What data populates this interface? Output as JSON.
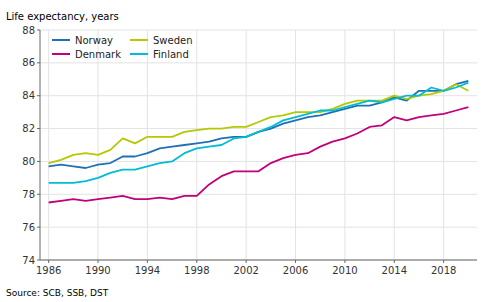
{
  "chart_data": {
    "type": "line",
    "ylabel": "Life expectancy, years",
    "source": "Source: SCB, SSB, DST",
    "x": [
      1986,
      1987,
      1988,
      1989,
      1990,
      1991,
      1992,
      1993,
      1994,
      1995,
      1996,
      1997,
      1998,
      1999,
      2000,
      2001,
      2002,
      2003,
      2004,
      2005,
      2006,
      2007,
      2008,
      2009,
      2010,
      2011,
      2012,
      2013,
      2014,
      2015,
      2016,
      2017,
      2018,
      2019,
      2020
    ],
    "series": [
      {
        "name": "Norway",
        "color": "#2070b4",
        "values": [
          79.7,
          79.8,
          79.7,
          79.6,
          79.8,
          79.9,
          80.3,
          80.3,
          80.5,
          80.8,
          80.9,
          81.0,
          81.1,
          81.2,
          81.4,
          81.5,
          81.5,
          81.8,
          82.0,
          82.3,
          82.5,
          82.7,
          82.8,
          83.0,
          83.2,
          83.4,
          83.4,
          83.6,
          83.9,
          83.7,
          84.3,
          84.3,
          84.3,
          84.7,
          84.9
        ]
      },
      {
        "name": "Sweden",
        "color": "#b5c900",
        "values": [
          79.9,
          80.1,
          80.4,
          80.5,
          80.4,
          80.7,
          81.4,
          81.1,
          81.5,
          81.5,
          81.5,
          81.8,
          81.9,
          82.0,
          82.0,
          82.1,
          82.1,
          82.4,
          82.7,
          82.8,
          83.0,
          83.0,
          83.0,
          83.2,
          83.5,
          83.7,
          83.7,
          83.7,
          84.0,
          83.8,
          84.0,
          84.1,
          84.3,
          84.7,
          84.3
        ]
      },
      {
        "name": "Denmark",
        "color": "#c0007c",
        "values": [
          77.5,
          77.6,
          77.7,
          77.6,
          77.7,
          77.8,
          77.9,
          77.7,
          77.7,
          77.8,
          77.7,
          77.9,
          77.9,
          78.6,
          79.1,
          79.4,
          79.4,
          79.4,
          79.9,
          80.2,
          80.4,
          80.5,
          80.9,
          81.2,
          81.4,
          81.7,
          82.1,
          82.2,
          82.7,
          82.5,
          82.7,
          82.8,
          82.9,
          83.1,
          83.3
        ]
      },
      {
        "name": "Finland",
        "color": "#00bcd4",
        "values": [
          78.7,
          78.7,
          78.7,
          78.8,
          79.0,
          79.3,
          79.5,
          79.5,
          79.7,
          79.9,
          80.0,
          80.5,
          80.8,
          80.9,
          81.0,
          81.4,
          81.5,
          81.8,
          82.1,
          82.5,
          82.7,
          82.9,
          83.1,
          83.1,
          83.3,
          83.5,
          83.7,
          83.6,
          83.8,
          84.0,
          84.0,
          84.5,
          84.3,
          84.5,
          84.8
        ]
      }
    ],
    "xlim": [
      1985.3,
      2020.7
    ],
    "xticks": [
      1986,
      1990,
      1994,
      1998,
      2002,
      2006,
      2010,
      2014,
      2018
    ],
    "ylim": [
      74,
      88
    ],
    "yticks": [
      74,
      76,
      78,
      80,
      82,
      84,
      86,
      88
    ],
    "grid": true,
    "legend": "upper left"
  }
}
